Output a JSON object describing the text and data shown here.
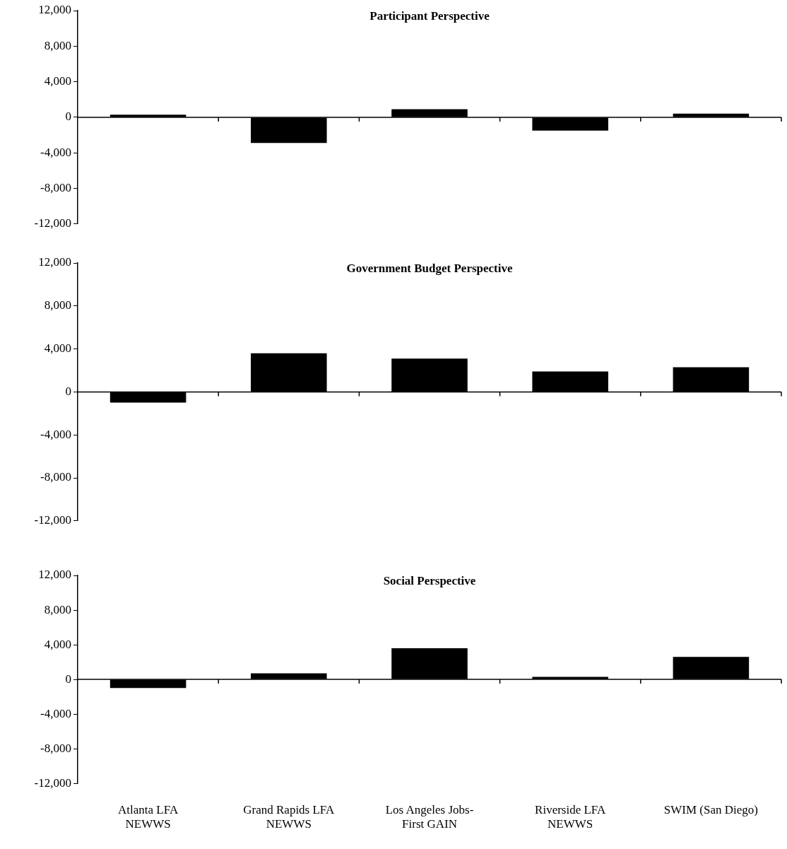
{
  "chart_data": [
    {
      "type": "bar",
      "title": "Participant Perspective",
      "categories": [
        null,
        null,
        null,
        null,
        null
      ],
      "values": [
        300,
        -2900,
        900,
        -1500,
        400
      ],
      "color": "#000000",
      "ylim": [
        -12000,
        12000
      ],
      "yticks": [
        {
          "value": -12000,
          "label": "-12,000"
        },
        {
          "value": -8000,
          "label": "-8,000"
        },
        {
          "value": -4000,
          "label": "-4,000"
        },
        {
          "value": 0,
          "label": "0"
        },
        {
          "value": 4000,
          "label": "4,000"
        },
        {
          "value": 8000,
          "label": "8,000"
        },
        {
          "value": 12000,
          "label": "12,000"
        }
      ],
      "tick_labels": "y"
    },
    {
      "type": "bar",
      "title": "Government Budget Perspective",
      "categories": [
        null,
        null,
        null,
        null,
        null
      ],
      "values": [
        -1000,
        3600,
        3100,
        1900,
        2300
      ],
      "color": "#000000",
      "ylim": [
        -12000,
        12000
      ],
      "yticks": [
        {
          "value": -12000,
          "label": "-12,000"
        },
        {
          "value": -8000,
          "label": "-8,000"
        },
        {
          "value": -4000,
          "label": "-4,000"
        },
        {
          "value": 0,
          "label": "0"
        },
        {
          "value": 4000,
          "label": "4,000"
        },
        {
          "value": 8000,
          "label": "8,000"
        },
        {
          "value": 12000,
          "label": "12,000"
        }
      ],
      "tick_labels": "y"
    },
    {
      "type": "bar",
      "title": "Social Perspective",
      "categories": [
        "Atlanta LFA NEWWS",
        "Grand Rapids LFA NEWWS",
        "Los Angeles Jobs-First GAIN",
        "Riverside LFA NEWWS",
        "SWIM (San Diego)"
      ],
      "values": [
        -1000,
        700,
        3600,
        300,
        2600
      ],
      "color": "#000000",
      "ylim": [
        -12000,
        12000
      ],
      "yticks": [
        {
          "value": -12000,
          "label": "-12,000"
        },
        {
          "value": -8000,
          "label": "-8,000"
        },
        {
          "value": -4000,
          "label": "-4,000"
        },
        {
          "value": 0,
          "label": "0"
        },
        {
          "value": 4000,
          "label": "4,000"
        },
        {
          "value": 8000,
          "label": "8,000"
        },
        {
          "value": 12000,
          "label": "12,000"
        }
      ]
    }
  ]
}
